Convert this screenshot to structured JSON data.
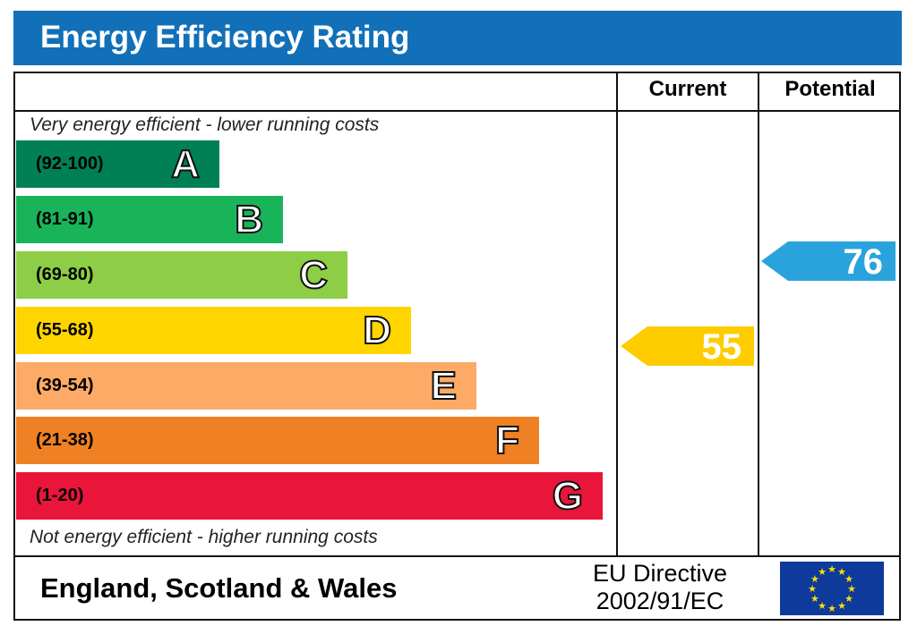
{
  "title": "Energy Efficiency Rating",
  "columns": {
    "current": "Current",
    "potential": "Potential"
  },
  "top_note": "Very energy efficient - lower running costs",
  "bottom_note": "Not energy efficient - higher running costs",
  "footer": {
    "region": "England, Scotland & Wales",
    "directive_line1": "EU Directive",
    "directive_line2": "2002/91/EC"
  },
  "chart_data": {
    "type": "bar",
    "title": "Energy Efficiency Rating",
    "bands": [
      {
        "letter": "A",
        "range": "(92-100)",
        "color": "#008054"
      },
      {
        "letter": "B",
        "range": "(81-91)",
        "color": "#19b459"
      },
      {
        "letter": "C",
        "range": "(69-80)",
        "color": "#8dce46"
      },
      {
        "letter": "D",
        "range": "(55-68)",
        "color": "#ffd500"
      },
      {
        "letter": "E",
        "range": "(39-54)",
        "color": "#fcaa65"
      },
      {
        "letter": "F",
        "range": "(21-38)",
        "color": "#ef8023"
      },
      {
        "letter": "G",
        "range": "(1-20)",
        "color": "#e9153b"
      }
    ],
    "current": {
      "value": 55,
      "label": "55",
      "color": "#ffcc00"
    },
    "potential": {
      "value": 76,
      "label": "76",
      "color": "#2aa3dc"
    }
  }
}
